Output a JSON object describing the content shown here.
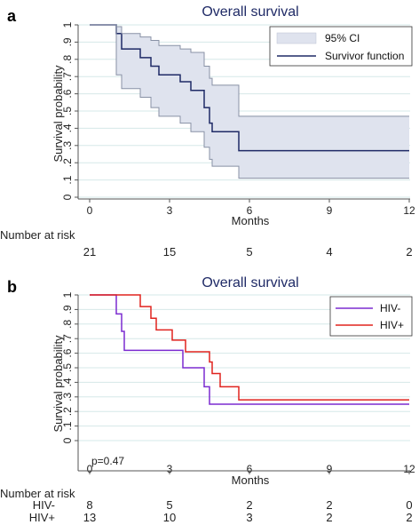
{
  "chart_data": [
    {
      "type": "line",
      "panel_label": "a",
      "title": "Overall survival",
      "xlabel": "Months",
      "ylabel": "Survival probability",
      "xlim": [
        0,
        12
      ],
      "ylim": [
        0,
        1
      ],
      "xticks": [
        0,
        3,
        6,
        9,
        12
      ],
      "yticks": [
        0,
        0.1,
        0.2,
        0.3,
        0.4,
        0.5,
        0.6,
        0.7,
        0.8,
        0.9,
        1
      ],
      "ytick_labels": [
        "0",
        ".1",
        ".2",
        ".3",
        ".4",
        ".5",
        ".6",
        ".7",
        ".8",
        ".9",
        "1"
      ],
      "grid": true,
      "legend_placement": "top-right",
      "legend": [
        {
          "label": "95% CI",
          "fill": "#dfe3ee"
        },
        {
          "label": "Survivor function",
          "color": "#1f2a66"
        }
      ],
      "series": [
        {
          "name": "Survivor function",
          "color": "#1f2a66",
          "steps": [
            [
              0,
              1
            ],
            [
              1.0,
              0.95
            ],
            [
              1.2,
              0.86
            ],
            [
              1.9,
              0.81
            ],
            [
              2.3,
              0.76
            ],
            [
              2.6,
              0.71
            ],
            [
              3.4,
              0.67
            ],
            [
              3.8,
              0.62
            ],
            [
              4.3,
              0.52
            ],
            [
              4.5,
              0.43
            ],
            [
              4.6,
              0.38
            ],
            [
              5.6,
              0.27
            ],
            [
              12,
              0.27
            ]
          ]
        },
        {
          "name": "95% CI upper",
          "color": "#8891a5",
          "steps": [
            [
              0,
              1
            ],
            [
              1.0,
              0.99
            ],
            [
              1.2,
              0.95
            ],
            [
              1.9,
              0.93
            ],
            [
              2.3,
              0.91
            ],
            [
              2.6,
              0.88
            ],
            [
              3.4,
              0.86
            ],
            [
              3.8,
              0.84
            ],
            [
              4.3,
              0.76
            ],
            [
              4.5,
              0.69
            ],
            [
              4.6,
              0.65
            ],
            [
              5.6,
              0.47
            ],
            [
              12,
              0.47
            ]
          ]
        },
        {
          "name": "95% CI lower",
          "color": "#8891a5",
          "steps": [
            [
              0,
              1
            ],
            [
              1.0,
              0.71
            ],
            [
              1.2,
              0.63
            ],
            [
              1.9,
              0.58
            ],
            [
              2.3,
              0.52
            ],
            [
              2.6,
              0.47
            ],
            [
              3.4,
              0.43
            ],
            [
              3.8,
              0.38
            ],
            [
              4.3,
              0.29
            ],
            [
              4.5,
              0.22
            ],
            [
              4.6,
              0.18
            ],
            [
              5.6,
              0.11
            ],
            [
              12,
              0.11
            ]
          ]
        }
      ],
      "risk_table": {
        "title": "Number at risk",
        "rows": [
          {
            "label": "",
            "values": [
              "21",
              "15",
              "5",
              "4",
              "2"
            ]
          }
        ]
      }
    },
    {
      "type": "line",
      "panel_label": "b",
      "title": "Overall survival",
      "xlabel": "Months",
      "ylabel": "Survival probability",
      "xlim": [
        0,
        12
      ],
      "ylim": [
        0,
        1
      ],
      "xticks": [
        0,
        3,
        6,
        9,
        12
      ],
      "yticks": [
        0,
        0.1,
        0.2,
        0.3,
        0.4,
        0.5,
        0.6,
        0.7,
        0.8,
        0.9,
        1
      ],
      "ytick_labels": [
        "0",
        ".1",
        ".2",
        ".3",
        ".4",
        ".5",
        ".6",
        ".7",
        ".8",
        ".9",
        "1"
      ],
      "grid": true,
      "legend_placement": "top-right",
      "legend": [
        {
          "label": "HIV-",
          "color": "#7b2bd0"
        },
        {
          "label": "HIV+",
          "color": "#e0231f"
        }
      ],
      "annotation": "p=0.47",
      "series": [
        {
          "name": "HIV-",
          "color": "#7b2bd0",
          "steps": [
            [
              0,
              1
            ],
            [
              1.0,
              0.87
            ],
            [
              1.2,
              0.75
            ],
            [
              1.3,
              0.62
            ],
            [
              3.5,
              0.5
            ],
            [
              4.3,
              0.37
            ],
            [
              4.5,
              0.25
            ],
            [
              12,
              0.25
            ]
          ]
        },
        {
          "name": "HIV+",
          "color": "#e0231f",
          "steps": [
            [
              0,
              1
            ],
            [
              1.9,
              0.92
            ],
            [
              2.3,
              0.84
            ],
            [
              2.5,
              0.76
            ],
            [
              3.1,
              0.69
            ],
            [
              3.6,
              0.61
            ],
            [
              4.5,
              0.54
            ],
            [
              4.6,
              0.46
            ],
            [
              4.9,
              0.37
            ],
            [
              5.6,
              0.28
            ],
            [
              12,
              0.28
            ]
          ]
        }
      ],
      "risk_table": {
        "title": "Number at risk",
        "rows": [
          {
            "label": "HIV-",
            "values": [
              "8",
              "5",
              "2",
              "2",
              "0"
            ]
          },
          {
            "label": "HIV+",
            "values": [
              "13",
              "10",
              "3",
              "2",
              "2"
            ]
          }
        ]
      }
    }
  ]
}
